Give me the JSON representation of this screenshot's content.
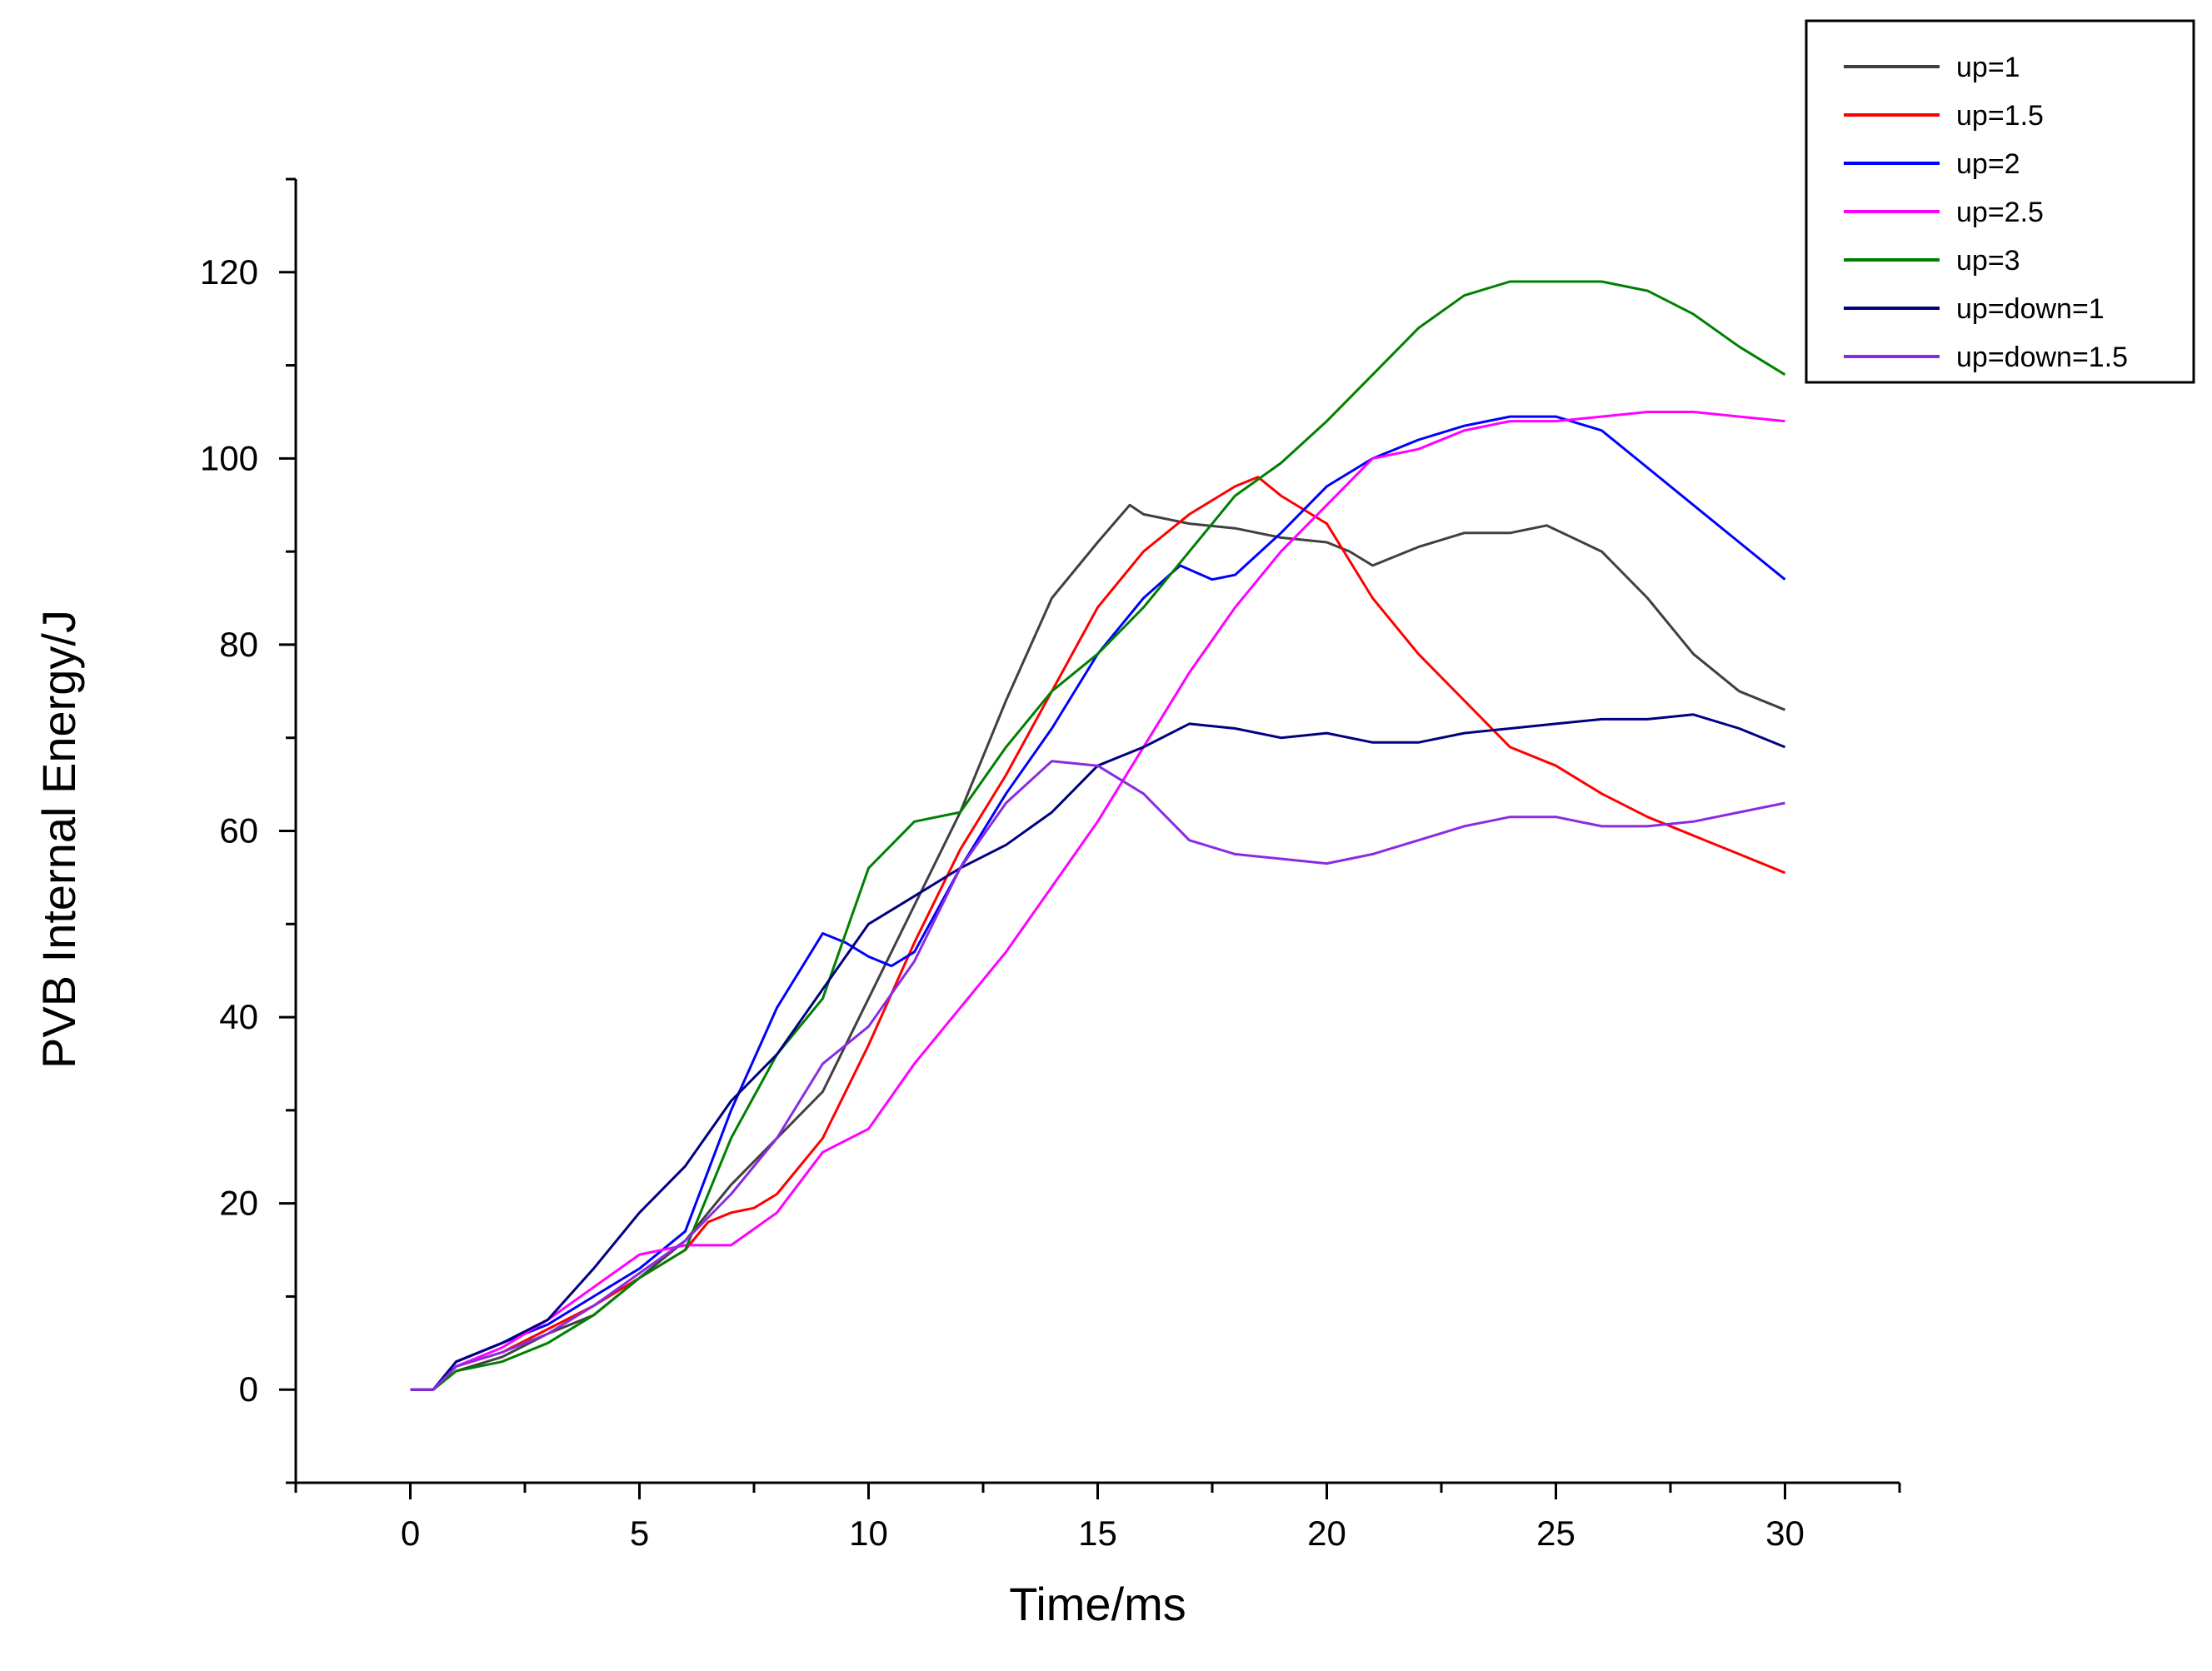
{
  "chart_data": {
    "type": "line",
    "title": "",
    "xlabel": "Time/ms",
    "ylabel": "PVB Internal Energy/J",
    "xlim": [
      -2.5,
      32.5
    ],
    "ylim": [
      -10,
      130
    ],
    "xticks": [
      0,
      5,
      10,
      15,
      20,
      25,
      30
    ],
    "yticks": [
      0,
      20,
      40,
      60,
      80,
      100,
      120
    ],
    "legend_position": "top-right",
    "series": [
      {
        "name": "up=1",
        "color": "#404040",
        "points": [
          [
            0,
            0
          ],
          [
            0.5,
            0
          ],
          [
            1,
            2
          ],
          [
            2,
            3.5
          ],
          [
            3,
            6
          ],
          [
            4,
            8
          ],
          [
            5,
            12
          ],
          [
            6,
            16
          ],
          [
            7,
            22
          ],
          [
            8,
            27
          ],
          [
            9,
            32
          ],
          [
            10,
            42
          ],
          [
            11,
            52
          ],
          [
            12,
            62
          ],
          [
            13,
            74
          ],
          [
            14,
            85
          ],
          [
            15,
            91
          ],
          [
            15.7,
            95
          ],
          [
            16,
            94
          ],
          [
            17,
            93
          ],
          [
            18,
            92.5
          ],
          [
            19,
            91.5
          ],
          [
            20,
            91
          ],
          [
            20.5,
            90
          ],
          [
            21,
            88.5
          ],
          [
            22,
            90.5
          ],
          [
            23,
            92
          ],
          [
            24,
            92
          ],
          [
            24.8,
            92.8
          ],
          [
            26,
            90
          ],
          [
            27,
            85
          ],
          [
            28,
            79
          ],
          [
            29,
            75
          ],
          [
            30,
            73
          ]
        ]
      },
      {
        "name": "up=1.5",
        "color": "#ff0000",
        "points": [
          [
            0,
            0
          ],
          [
            0.5,
            0
          ],
          [
            1,
            2.5
          ],
          [
            2,
            4
          ],
          [
            3,
            6.5
          ],
          [
            4,
            9
          ],
          [
            5,
            12
          ],
          [
            6,
            15
          ],
          [
            6.5,
            18
          ],
          [
            7,
            19
          ],
          [
            7.5,
            19.5
          ],
          [
            8,
            21
          ],
          [
            9,
            27
          ],
          [
            10,
            37
          ],
          [
            11,
            48
          ],
          [
            12,
            58
          ],
          [
            13,
            66
          ],
          [
            14,
            75
          ],
          [
            15,
            84
          ],
          [
            16,
            90
          ],
          [
            17,
            94
          ],
          [
            18,
            97
          ],
          [
            18.5,
            98
          ],
          [
            19,
            96
          ],
          [
            20,
            93
          ],
          [
            21,
            85
          ],
          [
            22,
            79
          ],
          [
            23,
            74
          ],
          [
            24,
            69
          ],
          [
            25,
            67
          ],
          [
            26,
            64
          ],
          [
            27,
            61.5
          ],
          [
            28,
            59.5
          ],
          [
            29,
            57.5
          ],
          [
            30,
            55.5
          ]
        ]
      },
      {
        "name": "up=2",
        "color": "#0000ff",
        "points": [
          [
            0,
            0
          ],
          [
            0.5,
            0
          ],
          [
            1,
            3
          ],
          [
            2,
            5
          ],
          [
            3,
            7
          ],
          [
            4,
            10
          ],
          [
            5,
            13
          ],
          [
            6,
            17
          ],
          [
            7,
            30
          ],
          [
            8,
            41
          ],
          [
            9,
            49
          ],
          [
            9.5,
            48
          ],
          [
            10,
            46.5
          ],
          [
            10.5,
            45.5
          ],
          [
            11,
            47
          ],
          [
            12,
            56
          ],
          [
            13,
            64
          ],
          [
            14,
            71
          ],
          [
            15,
            79
          ],
          [
            16,
            85
          ],
          [
            16.8,
            88.5
          ],
          [
            17.5,
            87
          ],
          [
            18,
            87.5
          ],
          [
            19,
            92
          ],
          [
            20,
            97
          ],
          [
            21,
            100
          ],
          [
            22,
            102
          ],
          [
            23,
            103.5
          ],
          [
            24,
            104.5
          ],
          [
            25,
            104.5
          ],
          [
            26,
            103
          ],
          [
            27,
            99
          ],
          [
            28,
            95
          ],
          [
            29,
            91
          ],
          [
            30,
            87
          ]
        ]
      },
      {
        "name": "up=2.5",
        "color": "#ff00ff",
        "points": [
          [
            0,
            0
          ],
          [
            0.5,
            0
          ],
          [
            1,
            2.5
          ],
          [
            2,
            4.5
          ],
          [
            3,
            7.5
          ],
          [
            4,
            11
          ],
          [
            5,
            14.5
          ],
          [
            6,
            15.5
          ],
          [
            7,
            15.5
          ],
          [
            8,
            19
          ],
          [
            9,
            25.5
          ],
          [
            10,
            28
          ],
          [
            11,
            35
          ],
          [
            12,
            41
          ],
          [
            13,
            47
          ],
          [
            14,
            54
          ],
          [
            15,
            61
          ],
          [
            16,
            69
          ],
          [
            17,
            77
          ],
          [
            18,
            84
          ],
          [
            19,
            90
          ],
          [
            20,
            95
          ],
          [
            21,
            100
          ],
          [
            22,
            101
          ],
          [
            23,
            103
          ],
          [
            24,
            104
          ],
          [
            25,
            104
          ],
          [
            26,
            104.5
          ],
          [
            27,
            105
          ],
          [
            28,
            105
          ],
          [
            29,
            104.5
          ],
          [
            30,
            104
          ]
        ]
      },
      {
        "name": "up=3",
        "color": "#008000",
        "points": [
          [
            0,
            0
          ],
          [
            0.5,
            0
          ],
          [
            1,
            2
          ],
          [
            2,
            3
          ],
          [
            3,
            5
          ],
          [
            4,
            8
          ],
          [
            5,
            12
          ],
          [
            6,
            15
          ],
          [
            7,
            27
          ],
          [
            8,
            36
          ],
          [
            9,
            42
          ],
          [
            10,
            56
          ],
          [
            11,
            61
          ],
          [
            12,
            62
          ],
          [
            13,
            69
          ],
          [
            14,
            75
          ],
          [
            15,
            79
          ],
          [
            16,
            84
          ],
          [
            17,
            90
          ],
          [
            18,
            96
          ],
          [
            19,
            99.5
          ],
          [
            20,
            104
          ],
          [
            21,
            109
          ],
          [
            22,
            114
          ],
          [
            23,
            117.5
          ],
          [
            24,
            119
          ],
          [
            25,
            119
          ],
          [
            26,
            119
          ],
          [
            27,
            118
          ],
          [
            28,
            115.5
          ],
          [
            29,
            112
          ],
          [
            30,
            109
          ]
        ]
      },
      {
        "name": "up=down=1",
        "color": "#000080",
        "points": [
          [
            0,
            0
          ],
          [
            0.5,
            0
          ],
          [
            1,
            3
          ],
          [
            2,
            5
          ],
          [
            3,
            7.5
          ],
          [
            4,
            13
          ],
          [
            5,
            19
          ],
          [
            6,
            24
          ],
          [
            7,
            31
          ],
          [
            8,
            36
          ],
          [
            9,
            43
          ],
          [
            10,
            50
          ],
          [
            11,
            53
          ],
          [
            12,
            56
          ],
          [
            13,
            58.5
          ],
          [
            14,
            62
          ],
          [
            15,
            67
          ],
          [
            16,
            69
          ],
          [
            17,
            71.5
          ],
          [
            18,
            71
          ],
          [
            19,
            70
          ],
          [
            20,
            70.5
          ],
          [
            21,
            69.5
          ],
          [
            22,
            69.5
          ],
          [
            23,
            70.5
          ],
          [
            24,
            71
          ],
          [
            25,
            71.5
          ],
          [
            26,
            72
          ],
          [
            27,
            72
          ],
          [
            28,
            72.5
          ],
          [
            29,
            71
          ],
          [
            30,
            69
          ]
        ]
      },
      {
        "name": "up=down=1.5",
        "color": "#8a2be2",
        "points": [
          [
            0,
            0
          ],
          [
            0.5,
            0
          ],
          [
            1,
            2.5
          ],
          [
            2,
            4
          ],
          [
            3,
            6
          ],
          [
            4,
            9
          ],
          [
            5,
            12.5
          ],
          [
            6,
            16
          ],
          [
            7,
            21
          ],
          [
            8,
            27
          ],
          [
            9,
            35
          ],
          [
            10,
            39
          ],
          [
            11,
            46
          ],
          [
            12,
            56
          ],
          [
            13,
            63
          ],
          [
            14,
            67.5
          ],
          [
            15,
            67
          ],
          [
            16,
            64
          ],
          [
            17,
            59
          ],
          [
            18,
            57.5
          ],
          [
            19,
            57
          ],
          [
            20,
            56.5
          ],
          [
            21,
            57.5
          ],
          [
            22,
            59
          ],
          [
            23,
            60.5
          ],
          [
            24,
            61.5
          ],
          [
            25,
            61.5
          ],
          [
            26,
            60.5
          ],
          [
            27,
            60.5
          ],
          [
            28,
            61
          ],
          [
            29,
            62
          ],
          [
            30,
            63
          ]
        ]
      }
    ]
  }
}
